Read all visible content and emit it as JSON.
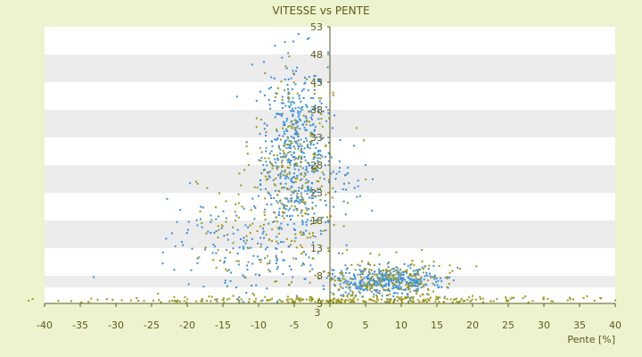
{
  "chart_data": {
    "type": "scatter",
    "title": "VITESSE vs PENTE",
    "xlabel": "Pente [%]",
    "ylabel": "",
    "xlim": [
      -40,
      40
    ],
    "ylim": [
      3,
      53
    ],
    "x_ticks": [
      "-40",
      "-35",
      "-30",
      "-25",
      "-20",
      "-15",
      "-10",
      "-5",
      "0",
      "5",
      "10",
      "15",
      "20",
      "25",
      "30",
      "35",
      "40"
    ],
    "y_ticks_right": [
      "53",
      "48",
      "43",
      "38",
      "33",
      "28",
      "23",
      "18",
      "13",
      "8",
      "3"
    ],
    "y_bottom_label": "3",
    "grid": "horizontal bands",
    "legend": "none",
    "colors": {
      "series_a": "#3a8fdc",
      "series_b": "#9a9a1a",
      "band_dark": "#ececec",
      "band_light": "#ffffff",
      "axis": "#5b5b1c"
    },
    "series": [
      {
        "color_ref": "series_a",
        "clusters": [
          {
            "cx": -5,
            "cy": 30,
            "sx": 2.3,
            "sy": 9,
            "n": 520
          },
          {
            "cx": -13,
            "cy": 12,
            "sx": 5,
            "sy": 5,
            "n": 130
          },
          {
            "cx": 8,
            "cy": 7,
            "sx": 4,
            "sy": 1.3,
            "n": 380
          },
          {
            "cx": 1,
            "cy": 24,
            "sx": 2,
            "sy": 5,
            "n": 40
          }
        ]
      },
      {
        "color_ref": "series_b",
        "clusters": [
          {
            "cx": -5,
            "cy": 26,
            "sx": 3,
            "sy": 9,
            "n": 260
          },
          {
            "cx": 0,
            "cy": 3.5,
            "sx": 18,
            "sy": 0.4,
            "n": 260
          },
          {
            "cx": 8,
            "cy": 7,
            "sx": 5,
            "sy": 2,
            "n": 220
          },
          {
            "cx": -12,
            "cy": 16,
            "sx": 4,
            "sy": 6,
            "n": 60
          }
        ]
      }
    ]
  }
}
